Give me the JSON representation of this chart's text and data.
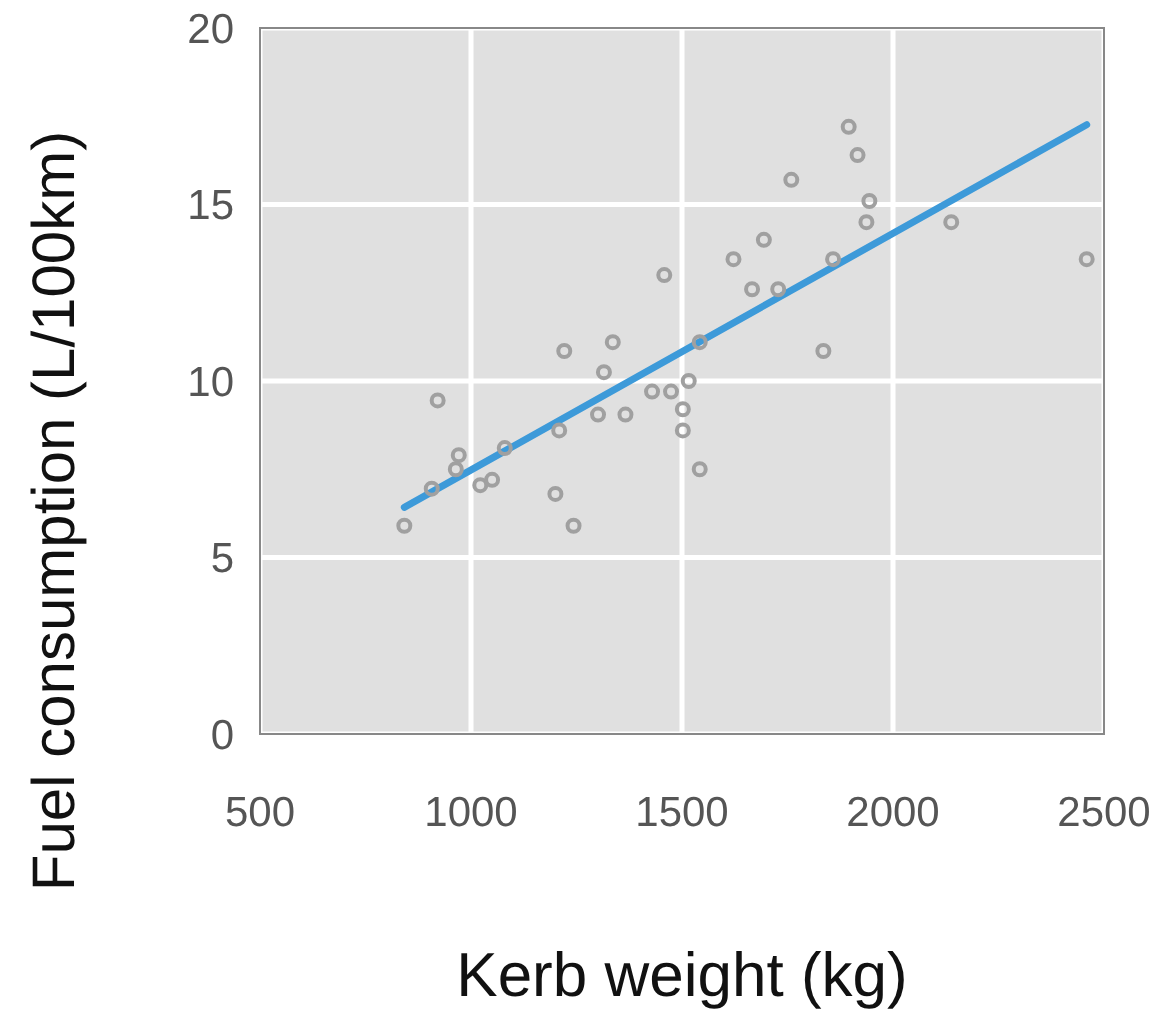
{
  "chart_data": {
    "type": "scatter",
    "xlabel": "Kerb weight (kg)",
    "ylabel": "Fuel consumption (L/100km)",
    "xlim": [
      500,
      2500
    ],
    "ylim": [
      0,
      20
    ],
    "xticks": [
      500,
      1000,
      1500,
      2000,
      2500
    ],
    "yticks": [
      0,
      5,
      10,
      15,
      20
    ],
    "grid": true,
    "marker": "circle",
    "series": [
      {
        "color": "#a0a0a0",
        "x": [
          842,
          907,
          921,
          971,
          964,
          1022,
          1050,
          1080,
          1209,
          1221,
          1200,
          1243,
          1301,
          1315,
          1336,
          1366,
          1429,
          1458,
          1474,
          1502,
          1502,
          1516,
          1542,
          1542,
          1622,
          1666,
          1694,
          1728,
          1759,
          1835,
          1858,
          1895,
          1916,
          1944,
          1937,
          2138,
          2459
        ],
        "values": [
          5.9,
          6.95,
          9.45,
          7.9,
          7.5,
          7.05,
          7.2,
          8.1,
          8.6,
          10.85,
          6.8,
          5.9,
          9.05,
          10.25,
          11.1,
          9.05,
          9.7,
          13.0,
          9.7,
          9.2,
          8.6,
          10.0,
          11.1,
          7.5,
          13.45,
          12.6,
          14.0,
          12.6,
          15.7,
          10.85,
          13.45,
          17.2,
          16.4,
          15.1,
          14.5,
          14.5,
          13.45
        ]
      },
      {
        "type": "line",
        "color": "#3d9ad9",
        "marker": "none",
        "x": [
          842,
          2459
        ],
        "values": [
          6.42,
          17.26
        ]
      }
    ]
  }
}
